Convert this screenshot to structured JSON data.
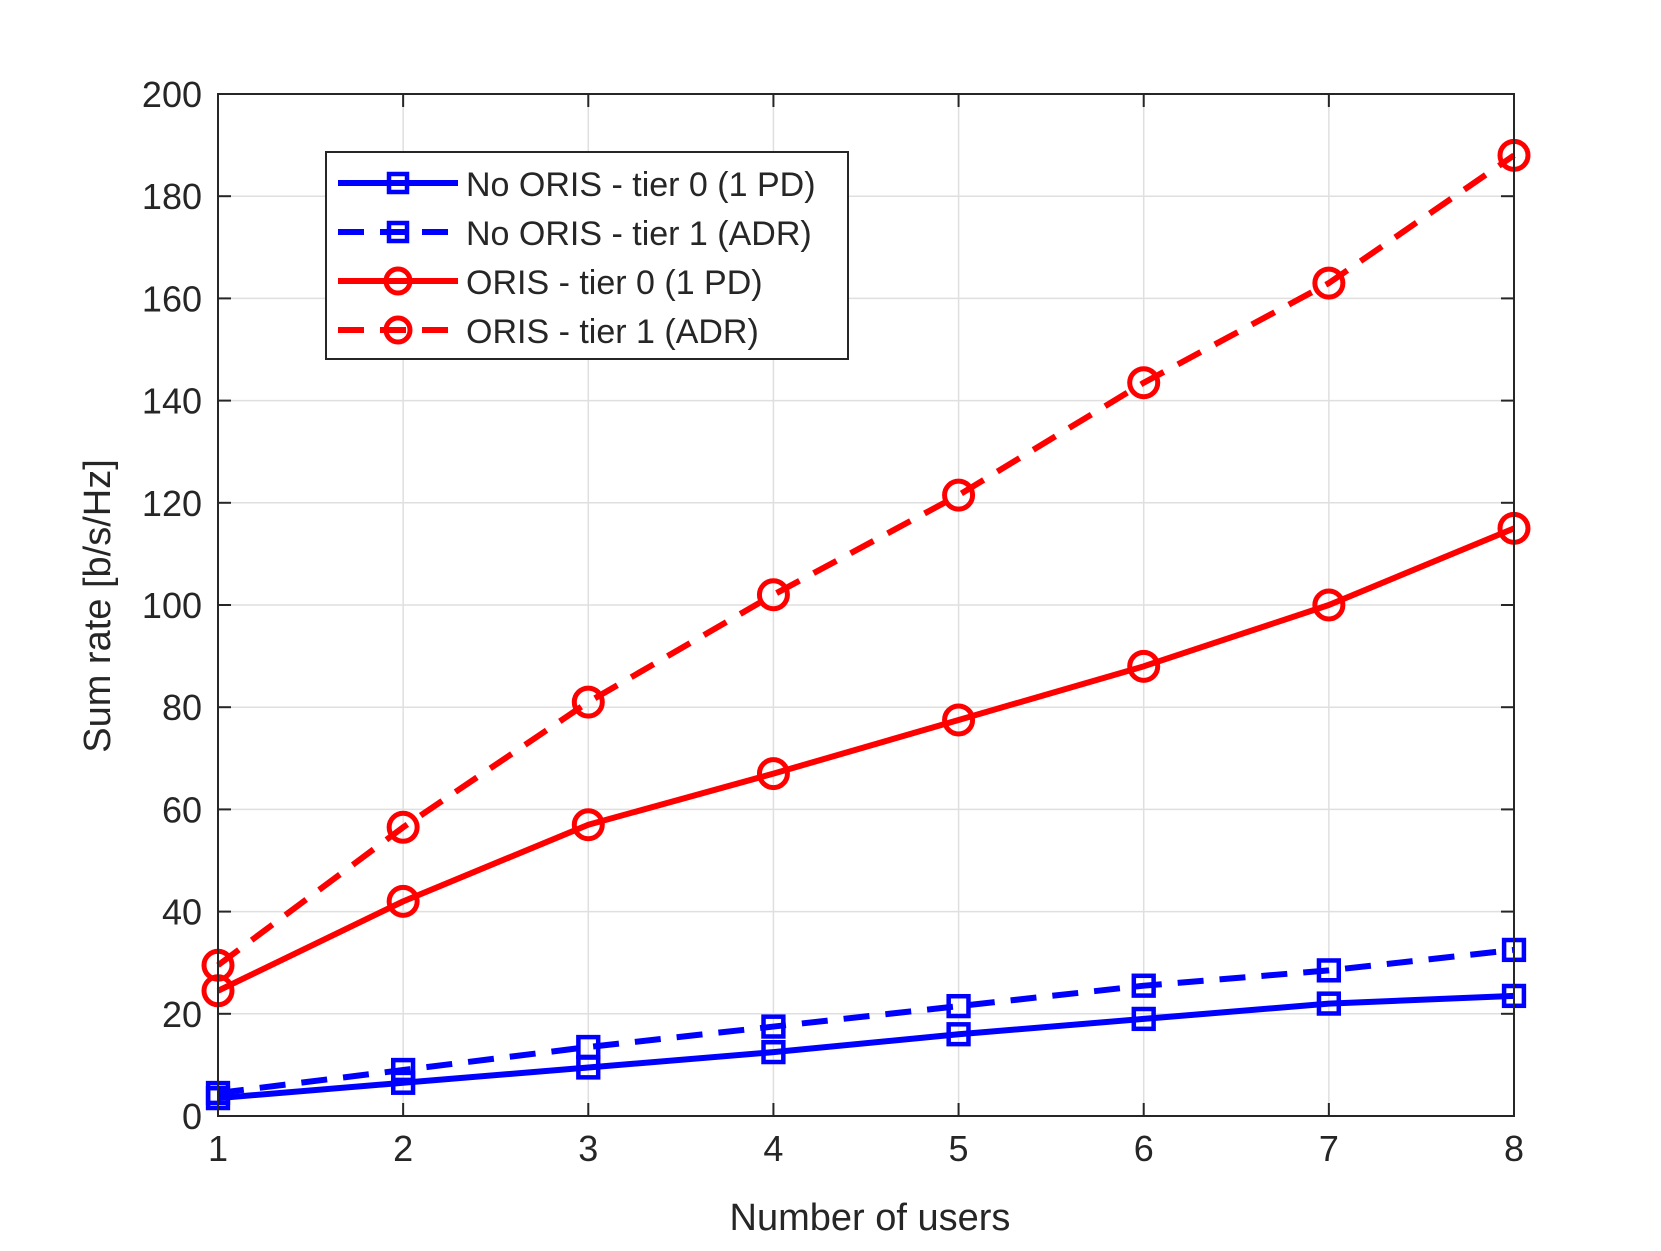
{
  "chart_data": {
    "type": "line",
    "title": "",
    "xlabel": "Number of users",
    "ylabel": "Sum rate [b/s/Hz]",
    "xlim": [
      1,
      8
    ],
    "ylim": [
      0,
      200
    ],
    "xticks": [
      1,
      2,
      3,
      4,
      5,
      6,
      7,
      8
    ],
    "yticks": [
      0,
      20,
      40,
      60,
      80,
      100,
      120,
      140,
      160,
      180,
      200
    ],
    "grid": true,
    "legend_position": "top-left",
    "x": [
      1,
      2,
      3,
      4,
      5,
      6,
      7,
      8
    ],
    "series": [
      {
        "name": "No ORIS - tier 0 (1 PD)",
        "values": [
          3.5,
          6.5,
          9.5,
          12.5,
          16,
          19,
          22,
          23.5
        ],
        "color": "#0000ff",
        "line_style": "solid",
        "marker": "square"
      },
      {
        "name": "No ORIS - tier 1 (ADR)",
        "values": [
          4.5,
          9,
          13.5,
          17.5,
          21.5,
          25.5,
          28.5,
          32.5
        ],
        "color": "#0000ff",
        "line_style": "dashed",
        "marker": "square"
      },
      {
        "name": "ORIS - tier 0 (1 PD)",
        "values": [
          24.5,
          42,
          57,
          67,
          77.5,
          88,
          100,
          115
        ],
        "color": "#ff0000",
        "line_style": "solid",
        "marker": "circle"
      },
      {
        "name": "ORIS - tier 1 (ADR)",
        "values": [
          29.5,
          56.5,
          81,
          102,
          121.5,
          143.5,
          163,
          188
        ],
        "color": "#ff0000",
        "line_style": "dashed",
        "marker": "circle"
      }
    ]
  }
}
